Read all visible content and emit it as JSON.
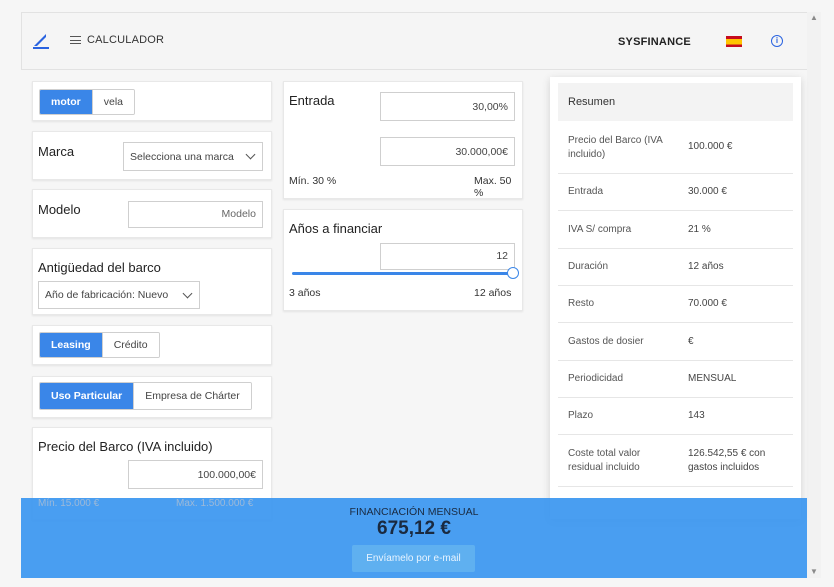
{
  "header": {
    "menu_label": "CALCULADOR",
    "brand": "SYSFINANCE",
    "info_glyph": "i"
  },
  "tipo": {
    "options": [
      "motor",
      "vela"
    ],
    "selected": "motor"
  },
  "marca": {
    "label": "Marca",
    "placeholder": "Selecciona una marca"
  },
  "modelo": {
    "label": "Modelo",
    "placeholder": "Modelo"
  },
  "antiguedad": {
    "label": "Antigüedad del barco",
    "value": "Año de fabricación: Nuevo"
  },
  "producto": {
    "options": [
      "Leasing",
      "Crédito"
    ],
    "selected": "Leasing"
  },
  "uso": {
    "options": [
      "Uso Particular",
      "Empresa de Chárter"
    ],
    "selected": "Uso Particular"
  },
  "precio": {
    "label": "Precio del Barco (IVA incluido)",
    "value": "100.000,00€",
    "min": "Mín. 15.000 €",
    "max": "Max. 1.500.000 €"
  },
  "entrada": {
    "label": "Entrada",
    "percent": "30,00%",
    "amount": "30.000,00€",
    "min": "Mín. 30 %",
    "max": "Max. 50 %"
  },
  "anos": {
    "label": "Años a financiar",
    "value": "12",
    "min_label": "3 años",
    "max_label": "12 años",
    "min": 3,
    "max": 12,
    "current": 12
  },
  "summary": {
    "title": "Resumen",
    "rows": [
      {
        "label": "Precio del Barco (IVA incluido)",
        "value": "100.000 €"
      },
      {
        "label": "Entrada",
        "value": "30.000 €"
      },
      {
        "label": "IVA S/ compra",
        "value": "21 %"
      },
      {
        "label": "Duración",
        "value": "12 años"
      },
      {
        "label": "Resto",
        "value": "70.000 €"
      },
      {
        "label": "Gastos de dosier",
        "value": "€"
      },
      {
        "label": "Periodicidad",
        "value": "MENSUAL"
      },
      {
        "label": "Plazo",
        "value": "143"
      },
      {
        "label": "Coste total valor residual incluido",
        "value": "126.542,55 € con gastos incluidos"
      }
    ]
  },
  "financing": {
    "title": "FINANCIACIÓN MENSUAL",
    "amount": "675,12 €",
    "email_button": "Envíamelo por e-mail"
  },
  "colors": {
    "accent": "#3a86e8",
    "bottom_bar": "#3a96f0",
    "flag_red": "#c60b1e",
    "flag_yellow": "#ffc400"
  }
}
